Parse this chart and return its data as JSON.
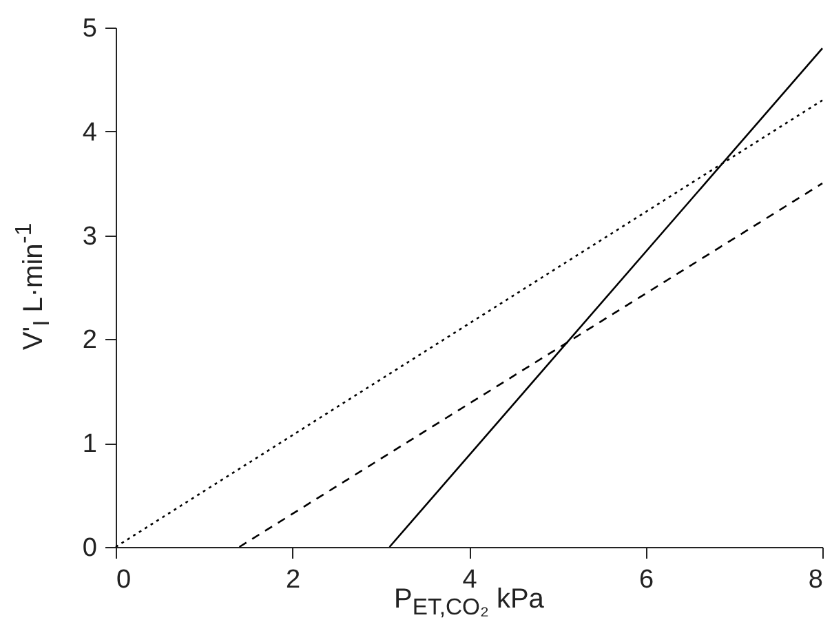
{
  "chart_data": {
    "type": "line",
    "xlabel": "P$_{ET,CO₂}$  kPa",
    "ylabel": "V'$_{I}$  L·min$^{-1}$",
    "series": [
      {
        "color": "#000000",
        "line_style": "dotted",
        "x": [
          0,
          8
        ],
        "values": [
          0,
          4.3
        ]
      },
      {
        "color": "#000000",
        "line_style": "dashed",
        "x": [
          1.4,
          8
        ],
        "values": [
          0,
          3.5
        ]
      },
      {
        "color": "#000000",
        "line_style": "solid",
        "x": [
          3.1,
          8
        ],
        "values": [
          0,
          4.8
        ]
      }
    ],
    "xlim": [
      0,
      8
    ],
    "xticks": [
      0,
      2,
      4,
      6,
      8
    ],
    "ylim": [
      0,
      5
    ],
    "yticks": [
      0,
      1,
      2,
      3,
      4,
      5
    ],
    "grid": false,
    "marker": "none"
  }
}
